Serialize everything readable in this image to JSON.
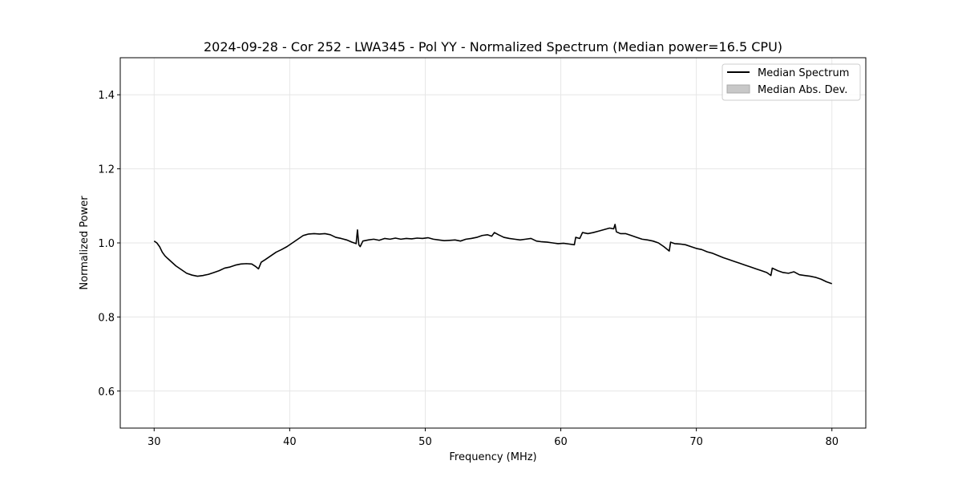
{
  "chart_data": {
    "type": "line",
    "title": "2024-09-28 - Cor 252 - LWA345 - Pol YY - Normalized Spectrum (Median power=16.5 CPU)",
    "xlabel": "Frequency (MHz)",
    "ylabel": "Normalized Power",
    "xlim": [
      27.5,
      82.5
    ],
    "ylim": [
      0.5,
      1.5
    ],
    "xticks": [
      30,
      40,
      50,
      60,
      70,
      80
    ],
    "yticks": [
      0.6,
      0.8,
      1.0,
      1.2,
      1.4
    ],
    "xtick_labels": [
      "30",
      "40",
      "50",
      "60",
      "70",
      "80"
    ],
    "ytick_labels": [
      "0.6",
      "0.8",
      "1.0",
      "1.2",
      "1.4"
    ],
    "grid": true,
    "legend_position": "top-right",
    "colors": {
      "median": "#000000",
      "mad_fill": "#c8c8c8",
      "grid": "#e6e6e6"
    },
    "series": [
      {
        "name": "Median Spectrum",
        "x": [
          30.0,
          30.2,
          30.4,
          30.6,
          30.8,
          31.0,
          31.3,
          31.6,
          32.0,
          32.4,
          32.8,
          33.2,
          33.6,
          34.0,
          34.4,
          34.8,
          35.2,
          35.6,
          36.0,
          36.4,
          36.8,
          37.2,
          37.5,
          37.7,
          37.9,
          38.2,
          38.6,
          39.0,
          39.4,
          39.8,
          40.2,
          40.6,
          41.0,
          41.4,
          41.8,
          42.2,
          42.6,
          43.0,
          43.4,
          43.8,
          44.2,
          44.6,
          44.9,
          45.0,
          45.1,
          45.2,
          45.4,
          45.8,
          46.2,
          46.6,
          47.0,
          47.4,
          47.8,
          48.2,
          48.6,
          49.0,
          49.4,
          49.8,
          50.2,
          50.6,
          51.0,
          51.4,
          51.8,
          52.2,
          52.6,
          53.0,
          53.4,
          53.8,
          54.2,
          54.6,
          54.9,
          55.1,
          55.4,
          55.8,
          56.2,
          56.6,
          57.0,
          57.4,
          57.8,
          58.2,
          58.6,
          59.0,
          59.4,
          59.8,
          60.2,
          60.6,
          61.0,
          61.1,
          61.4,
          61.6,
          62.0,
          62.4,
          62.8,
          63.2,
          63.6,
          63.9,
          64.0,
          64.1,
          64.4,
          64.8,
          65.2,
          65.6,
          66.0,
          66.4,
          66.8,
          67.2,
          67.6,
          68.0,
          68.1,
          68.4,
          68.8,
          69.2,
          69.6,
          70.0,
          70.4,
          70.8,
          71.2,
          71.6,
          72.0,
          72.4,
          72.8,
          73.2,
          73.6,
          74.0,
          74.4,
          74.8,
          75.2,
          75.5,
          75.6,
          76.0,
          76.4,
          76.8,
          77.2,
          77.6,
          78.0,
          78.4,
          78.8,
          79.2,
          79.6,
          80.0
        ],
        "values": [
          1.005,
          1.0,
          0.99,
          0.975,
          0.965,
          0.958,
          0.948,
          0.938,
          0.928,
          0.918,
          0.913,
          0.91,
          0.912,
          0.915,
          0.92,
          0.925,
          0.932,
          0.935,
          0.94,
          0.943,
          0.944,
          0.943,
          0.936,
          0.93,
          0.948,
          0.955,
          0.965,
          0.975,
          0.982,
          0.99,
          1.0,
          1.01,
          1.02,
          1.024,
          1.025,
          1.024,
          1.025,
          1.022,
          1.015,
          1.012,
          1.008,
          1.002,
          0.998,
          1.035,
          0.995,
          0.99,
          1.005,
          1.008,
          1.01,
          1.007,
          1.012,
          1.01,
          1.013,
          1.01,
          1.012,
          1.011,
          1.013,
          1.012,
          1.014,
          1.01,
          1.008,
          1.006,
          1.007,
          1.008,
          1.005,
          1.01,
          1.012,
          1.015,
          1.02,
          1.022,
          1.018,
          1.028,
          1.022,
          1.015,
          1.012,
          1.01,
          1.008,
          1.01,
          1.012,
          1.005,
          1.003,
          1.002,
          1.0,
          0.998,
          0.999,
          0.997,
          0.995,
          1.015,
          1.012,
          1.028,
          1.025,
          1.028,
          1.032,
          1.036,
          1.04,
          1.038,
          1.05,
          1.03,
          1.025,
          1.025,
          1.02,
          1.015,
          1.01,
          1.008,
          1.005,
          1.0,
          0.99,
          0.978,
          1.002,
          0.998,
          0.997,
          0.995,
          0.99,
          0.985,
          0.982,
          0.976,
          0.972,
          0.966,
          0.96,
          0.955,
          0.95,
          0.945,
          0.94,
          0.935,
          0.93,
          0.925,
          0.92,
          0.912,
          0.932,
          0.925,
          0.92,
          0.918,
          0.922,
          0.914,
          0.912,
          0.91,
          0.907,
          0.902,
          0.895,
          0.89
        ]
      },
      {
        "name": "Median Abs. Dev."
      }
    ]
  }
}
